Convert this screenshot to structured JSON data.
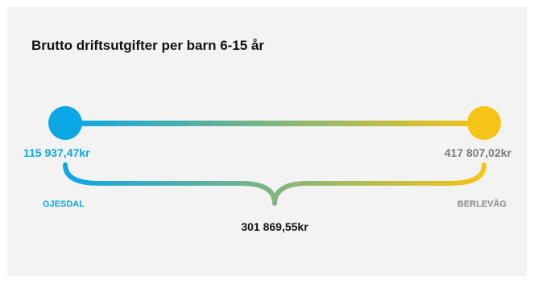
{
  "chart_data": {
    "type": "dumbbell",
    "title": "Brutto driftsutgifter per barn 6-15 år",
    "min": {
      "name": "GJESDAL",
      "value": 115937.47,
      "label": "115 937,47kr",
      "color": "#0aa7e6"
    },
    "max": {
      "name": "BERLEVÅG",
      "value": 417807.02,
      "label": "417 807,02kr",
      "color": "#f6c416"
    },
    "difference": {
      "value": 301869.55,
      "label": "301 869,55kr"
    },
    "value_color_right": "#7a7a7a",
    "name_color_right": "#8a8a8a"
  }
}
